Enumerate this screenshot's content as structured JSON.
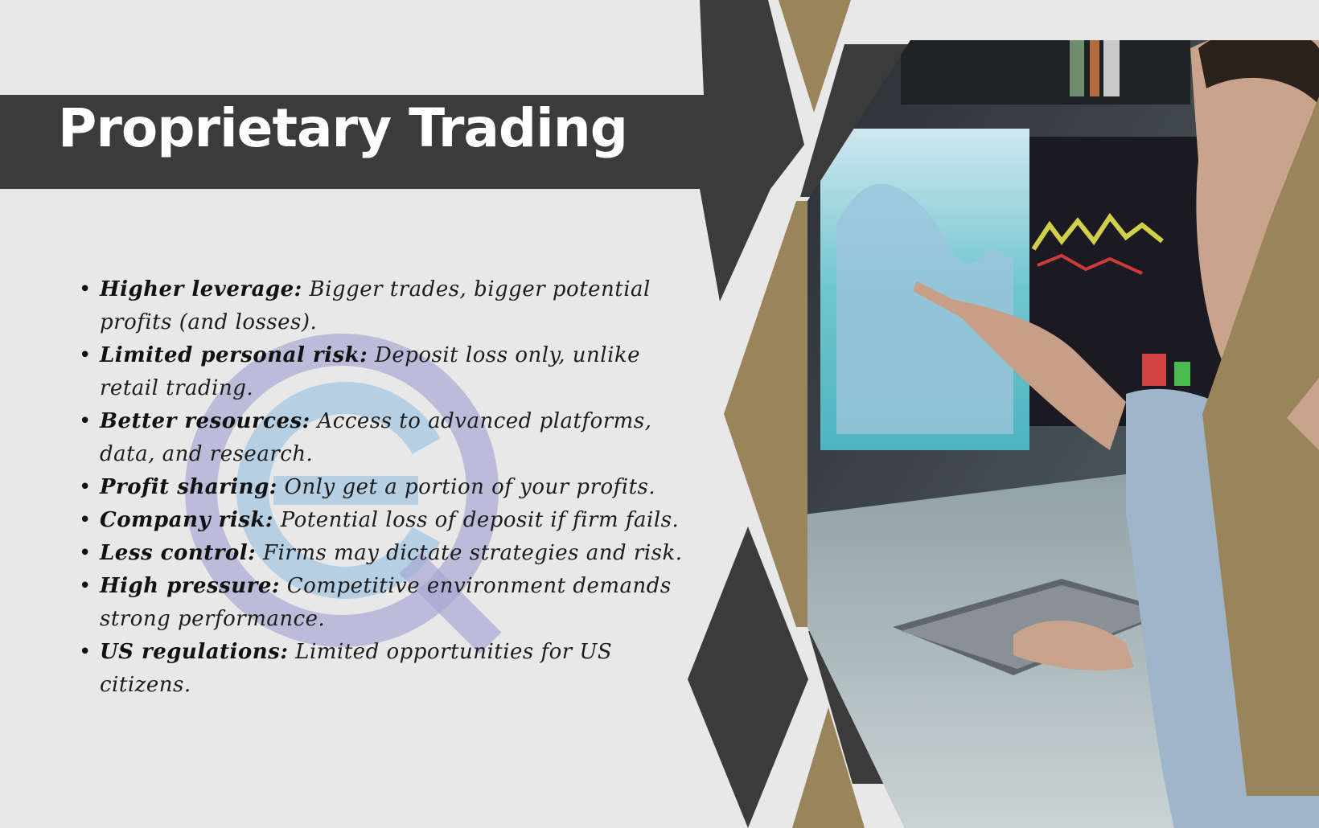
{
  "slide": {
    "title": "Proprietary Trading",
    "bullets": [
      {
        "term": "Higher leverage:",
        "text": " Bigger trades, bigger potential profits (and losses)."
      },
      {
        "term": "Limited personal risk:",
        "text": " Deposit loss only, unlike retail trading."
      },
      {
        "term": "Better resources:",
        "text": " Access to advanced platforms, data, and research."
      },
      {
        "term": "Profit sharing:",
        "text": " Only get a portion of your profits."
      },
      {
        "term": "Company risk:",
        "text": " Potential loss of deposit if firm fails."
      },
      {
        "term": "Less control:",
        "text": " Firms may dictate strategies and risk."
      },
      {
        "term": "High pressure:",
        "text": " Competitive environment demands strong performance."
      },
      {
        "term": "US regulations:",
        "text": " Limited opportunities for US citizens."
      }
    ]
  },
  "colors": {
    "background": "#e8e8e8",
    "dark": "#3b3b3b",
    "gold": "#9a8459",
    "title_text": "#ffffff",
    "watermark_ring": "#a9a9d4",
    "watermark_inner": "#a6c7e2"
  },
  "photo": {
    "subject": "trader-at-monitors-photo"
  }
}
